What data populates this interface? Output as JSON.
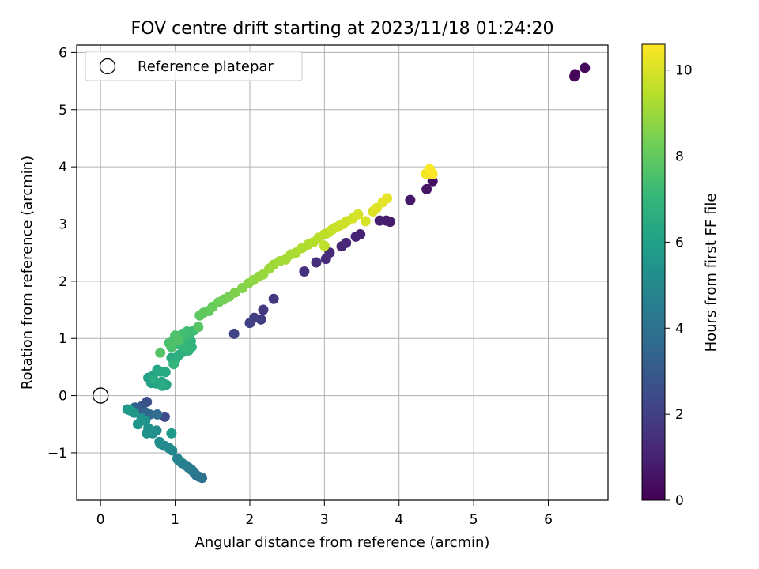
{
  "chart_data": {
    "type": "scatter",
    "title": "FOV centre drift starting at 2023/11/18 01:24:20",
    "xlabel": "Angular distance from reference (arcmin)",
    "ylabel": "Rotation from reference (arcmin)",
    "colorbar_label": "Hours from first FF file",
    "xlim": [
      -0.32,
      6.8
    ],
    "ylim": [
      -1.83,
      6.13
    ],
    "clim": [
      0,
      10.6
    ],
    "xticks": [
      "0",
      "1",
      "2",
      "3",
      "4",
      "5",
      "6"
    ],
    "yticks": [
      "−1",
      "0",
      "1",
      "2",
      "3",
      "4",
      "5",
      "6"
    ],
    "cticks": [
      "0",
      "2",
      "4",
      "6",
      "8",
      "10"
    ],
    "grid": true,
    "colormap": "viridis",
    "legend": {
      "placement": "top-left",
      "label": "Reference platepar"
    },
    "reference_point": {
      "x": 0,
      "y": 0
    },
    "points": [
      {
        "x": 6.35,
        "y": 5.58,
        "h": 0.1
      },
      {
        "x": 6.36,
        "y": 5.62,
        "h": 0.15
      },
      {
        "x": 6.49,
        "y": 5.73,
        "h": 0.25
      },
      {
        "x": 4.45,
        "y": 3.75,
        "h": 0.5
      },
      {
        "x": 4.37,
        "y": 3.61,
        "h": 0.6
      },
      {
        "x": 4.15,
        "y": 3.42,
        "h": 0.7
      },
      {
        "x": 3.88,
        "y": 3.04,
        "h": 0.8
      },
      {
        "x": 3.83,
        "y": 3.06,
        "h": 0.85
      },
      {
        "x": 3.74,
        "y": 3.06,
        "h": 0.9
      },
      {
        "x": 3.48,
        "y": 2.82,
        "h": 1.0
      },
      {
        "x": 3.42,
        "y": 2.78,
        "h": 1.05
      },
      {
        "x": 3.29,
        "y": 2.67,
        "h": 1.1
      },
      {
        "x": 3.23,
        "y": 2.61,
        "h": 1.15
      },
      {
        "x": 3.07,
        "y": 2.5,
        "h": 1.2
      },
      {
        "x": 3.02,
        "y": 2.39,
        "h": 1.3
      },
      {
        "x": 2.89,
        "y": 2.33,
        "h": 1.4
      },
      {
        "x": 2.73,
        "y": 2.17,
        "h": 1.5
      },
      {
        "x": 2.32,
        "y": 1.69,
        "h": 1.7
      },
      {
        "x": 2.18,
        "y": 1.5,
        "h": 1.8
      },
      {
        "x": 2.15,
        "y": 1.33,
        "h": 1.9
      },
      {
        "x": 2.06,
        "y": 1.36,
        "h": 2.0
      },
      {
        "x": 2.0,
        "y": 1.27,
        "h": 2.1
      },
      {
        "x": 1.79,
        "y": 1.08,
        "h": 2.2
      },
      {
        "x": 0.86,
        "y": -0.37,
        "h": 2.4
      },
      {
        "x": 0.62,
        "y": -0.11,
        "h": 2.6
      },
      {
        "x": 0.55,
        "y": -0.19,
        "h": 2.8
      },
      {
        "x": 0.5,
        "y": -0.24,
        "h": 3.0
      },
      {
        "x": 0.46,
        "y": -0.21,
        "h": 3.2
      },
      {
        "x": 0.6,
        "y": -0.29,
        "h": 3.4
      },
      {
        "x": 0.66,
        "y": -0.33,
        "h": 3.6
      },
      {
        "x": 0.76,
        "y": -0.33,
        "h": 3.8
      },
      {
        "x": 1.36,
        "y": -1.44,
        "h": 3.9
      },
      {
        "x": 1.32,
        "y": -1.42,
        "h": 4.0
      },
      {
        "x": 1.28,
        "y": -1.39,
        "h": 4.1
      },
      {
        "x": 1.25,
        "y": -1.34,
        "h": 4.2
      },
      {
        "x": 1.22,
        "y": -1.3,
        "h": 4.3
      },
      {
        "x": 1.18,
        "y": -1.26,
        "h": 4.4
      },
      {
        "x": 1.14,
        "y": -1.22,
        "h": 4.5
      },
      {
        "x": 1.09,
        "y": -1.18,
        "h": 4.6
      },
      {
        "x": 1.05,
        "y": -1.14,
        "h": 4.7
      },
      {
        "x": 1.03,
        "y": -1.1,
        "h": 4.8
      },
      {
        "x": 0.96,
        "y": -0.96,
        "h": 4.9
      },
      {
        "x": 0.92,
        "y": -0.92,
        "h": 5.0
      },
      {
        "x": 0.86,
        "y": -0.88,
        "h": 5.05
      },
      {
        "x": 0.8,
        "y": -0.84,
        "h": 5.1
      },
      {
        "x": 0.79,
        "y": -0.81,
        "h": 5.15
      },
      {
        "x": 0.75,
        "y": -0.61,
        "h": 5.2
      },
      {
        "x": 0.7,
        "y": -0.66,
        "h": 5.25
      },
      {
        "x": 0.66,
        "y": -0.62,
        "h": 5.3
      },
      {
        "x": 0.64,
        "y": -0.57,
        "h": 5.35
      },
      {
        "x": 0.62,
        "y": -0.66,
        "h": 5.4
      },
      {
        "x": 0.6,
        "y": -0.44,
        "h": 5.45
      },
      {
        "x": 0.55,
        "y": -0.4,
        "h": 5.5
      },
      {
        "x": 0.5,
        "y": -0.5,
        "h": 5.55
      },
      {
        "x": 0.45,
        "y": -0.3,
        "h": 5.6
      },
      {
        "x": 0.4,
        "y": -0.26,
        "h": 5.65
      },
      {
        "x": 0.36,
        "y": -0.24,
        "h": 5.7
      },
      {
        "x": 0.95,
        "y": -0.66,
        "h": 5.75
      },
      {
        "x": 0.64,
        "y": 0.31,
        "h": 6.0
      },
      {
        "x": 0.68,
        "y": 0.22,
        "h": 6.05
      },
      {
        "x": 0.7,
        "y": 0.34,
        "h": 6.1
      },
      {
        "x": 0.75,
        "y": 0.21,
        "h": 6.15
      },
      {
        "x": 0.82,
        "y": 0.24,
        "h": 6.2
      },
      {
        "x": 0.88,
        "y": 0.19,
        "h": 6.25
      },
      {
        "x": 0.76,
        "y": 0.45,
        "h": 6.3
      },
      {
        "x": 0.8,
        "y": 0.42,
        "h": 6.35
      },
      {
        "x": 0.87,
        "y": 0.41,
        "h": 6.4
      },
      {
        "x": 0.83,
        "y": 0.17,
        "h": 6.45
      },
      {
        "x": 0.71,
        "y": 0.28,
        "h": 6.5
      },
      {
        "x": 0.95,
        "y": 0.66,
        "h": 6.55
      },
      {
        "x": 1.0,
        "y": 0.62,
        "h": 6.6
      },
      {
        "x": 1.05,
        "y": 0.71,
        "h": 6.65
      },
      {
        "x": 1.1,
        "y": 0.76,
        "h": 6.7
      },
      {
        "x": 1.15,
        "y": 0.82,
        "h": 6.75
      },
      {
        "x": 1.18,
        "y": 0.79,
        "h": 6.8
      },
      {
        "x": 1.22,
        "y": 0.85,
        "h": 6.85
      },
      {
        "x": 1.21,
        "y": 0.95,
        "h": 6.9
      },
      {
        "x": 0.98,
        "y": 0.55,
        "h": 6.95
      },
      {
        "x": 1.13,
        "y": 0.86,
        "h": 7.0
      },
      {
        "x": 1.02,
        "y": 0.91,
        "h": 7.05
      },
      {
        "x": 1.08,
        "y": 0.94,
        "h": 7.1
      },
      {
        "x": 1.15,
        "y": 1.05,
        "h": 7.15
      },
      {
        "x": 1.2,
        "y": 1.09,
        "h": 7.2
      },
      {
        "x": 1.25,
        "y": 1.14,
        "h": 7.25
      },
      {
        "x": 1.16,
        "y": 1.12,
        "h": 7.3
      },
      {
        "x": 1.1,
        "y": 1.08,
        "h": 7.35
      },
      {
        "x": 1.06,
        "y": 1.02,
        "h": 7.4
      },
      {
        "x": 0.98,
        "y": 0.97,
        "h": 7.45
      },
      {
        "x": 0.92,
        "y": 0.92,
        "h": 7.5
      },
      {
        "x": 0.95,
        "y": 0.85,
        "h": 7.55
      },
      {
        "x": 1.0,
        "y": 1.05,
        "h": 7.6
      },
      {
        "x": 1.04,
        "y": 0.97,
        "h": 7.65
      },
      {
        "x": 0.8,
        "y": 0.75,
        "h": 7.7
      },
      {
        "x": 1.31,
        "y": 1.2,
        "h": 7.8
      },
      {
        "x": 1.33,
        "y": 1.4,
        "h": 7.9
      },
      {
        "x": 1.38,
        "y": 1.45,
        "h": 7.95
      },
      {
        "x": 1.45,
        "y": 1.48,
        "h": 8.0
      },
      {
        "x": 1.5,
        "y": 1.55,
        "h": 8.1
      },
      {
        "x": 1.58,
        "y": 1.63,
        "h": 8.2
      },
      {
        "x": 1.65,
        "y": 1.68,
        "h": 8.3
      },
      {
        "x": 1.72,
        "y": 1.73,
        "h": 8.4
      },
      {
        "x": 1.8,
        "y": 1.8,
        "h": 8.5
      },
      {
        "x": 1.9,
        "y": 1.88,
        "h": 8.6
      },
      {
        "x": 1.98,
        "y": 1.96,
        "h": 8.7
      },
      {
        "x": 2.05,
        "y": 2.02,
        "h": 8.8
      },
      {
        "x": 2.12,
        "y": 2.08,
        "h": 8.85
      },
      {
        "x": 2.18,
        "y": 2.12,
        "h": 8.9
      },
      {
        "x": 2.26,
        "y": 2.22,
        "h": 9.0
      },
      {
        "x": 2.32,
        "y": 2.29,
        "h": 9.05
      },
      {
        "x": 2.4,
        "y": 2.35,
        "h": 9.1
      },
      {
        "x": 2.48,
        "y": 2.38,
        "h": 9.15
      },
      {
        "x": 2.55,
        "y": 2.47,
        "h": 9.2
      },
      {
        "x": 2.62,
        "y": 2.5,
        "h": 9.25
      },
      {
        "x": 2.7,
        "y": 2.58,
        "h": 9.3
      },
      {
        "x": 2.78,
        "y": 2.64,
        "h": 9.35
      },
      {
        "x": 2.85,
        "y": 2.68,
        "h": 9.4
      },
      {
        "x": 2.92,
        "y": 2.76,
        "h": 9.45
      },
      {
        "x": 3.0,
        "y": 2.82,
        "h": 9.5
      },
      {
        "x": 3.05,
        "y": 2.85,
        "h": 9.55
      },
      {
        "x": 3.0,
        "y": 2.62,
        "h": 9.6
      },
      {
        "x": 3.1,
        "y": 2.9,
        "h": 9.65
      },
      {
        "x": 3.15,
        "y": 2.94,
        "h": 9.7
      },
      {
        "x": 3.2,
        "y": 2.97,
        "h": 9.75
      },
      {
        "x": 3.25,
        "y": 3.0,
        "h": 9.8
      },
      {
        "x": 3.3,
        "y": 3.05,
        "h": 9.85
      },
      {
        "x": 3.38,
        "y": 3.1,
        "h": 9.9
      },
      {
        "x": 3.45,
        "y": 3.17,
        "h": 9.95
      },
      {
        "x": 3.55,
        "y": 3.05,
        "h": 10.0
      },
      {
        "x": 3.65,
        "y": 3.22,
        "h": 10.05
      },
      {
        "x": 3.7,
        "y": 3.28,
        "h": 10.1
      },
      {
        "x": 3.78,
        "y": 3.38,
        "h": 10.15
      },
      {
        "x": 3.84,
        "y": 3.45,
        "h": 10.2
      },
      {
        "x": 4.36,
        "y": 3.88,
        "h": 10.4
      },
      {
        "x": 4.42,
        "y": 3.94,
        "h": 10.45
      },
      {
        "x": 4.45,
        "y": 3.87,
        "h": 10.5
      },
      {
        "x": 4.41,
        "y": 3.96,
        "h": 10.55
      }
    ]
  }
}
